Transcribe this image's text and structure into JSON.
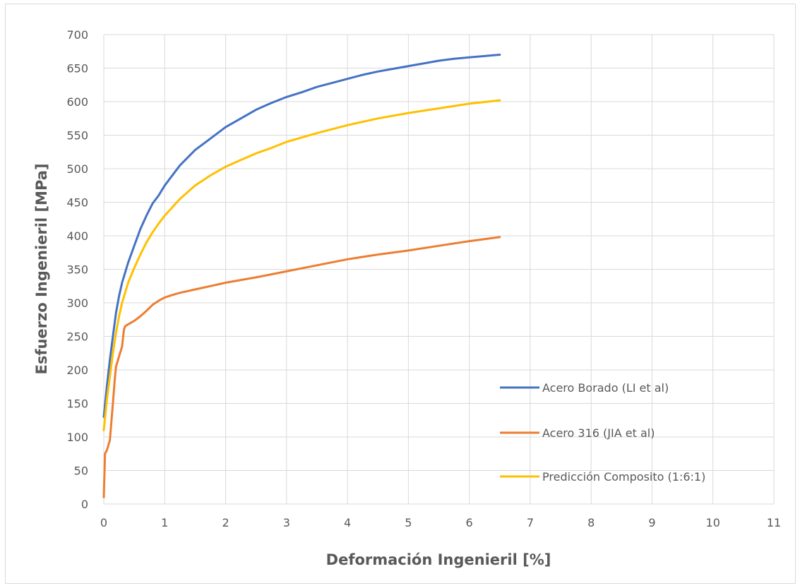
{
  "chart_data": {
    "type": "line",
    "xlabel": "Deformación Ingenieril [%]",
    "ylabel": "Esfuerzo Ingenieril [MPa]",
    "xlim": [
      0,
      11
    ],
    "ylim": [
      0,
      700
    ],
    "x_ticks": [
      0,
      1,
      2,
      3,
      4,
      5,
      6,
      7,
      8,
      9,
      10,
      11
    ],
    "y_ticks": [
      0,
      50,
      100,
      150,
      200,
      250,
      300,
      350,
      400,
      450,
      500,
      550,
      600,
      650,
      700
    ],
    "grid": true,
    "legend_position": "right",
    "series": [
      {
        "name": "Acero Borado (LI et al)",
        "color": "#4472C4",
        "x": [
          0,
          0.05,
          0.1,
          0.15,
          0.2,
          0.25,
          0.3,
          0.4,
          0.5,
          0.6,
          0.7,
          0.8,
          0.9,
          1.0,
          1.1,
          1.25,
          1.5,
          1.75,
          2.0,
          2.25,
          2.5,
          2.75,
          3.0,
          3.25,
          3.5,
          3.75,
          4.0,
          4.25,
          4.5,
          4.75,
          5.0,
          5.25,
          5.5,
          5.75,
          6.0,
          6.25,
          6.5
        ],
        "y": [
          130,
          175,
          215,
          250,
          285,
          310,
          330,
          360,
          385,
          410,
          430,
          448,
          460,
          475,
          487,
          505,
          528,
          545,
          562,
          575,
          588,
          598,
          607,
          614,
          622,
          628,
          634,
          640,
          645,
          649,
          653,
          657,
          661,
          664,
          666,
          668,
          670
        ]
      },
      {
        "name": "Acero 316 (JIA et al)",
        "color": "#ED7D31",
        "x": [
          0,
          0.02,
          0.05,
          0.1,
          0.12,
          0.15,
          0.18,
          0.2,
          0.25,
          0.3,
          0.33,
          0.35,
          0.4,
          0.5,
          0.6,
          0.7,
          0.8,
          0.9,
          1.0,
          1.1,
          1.25,
          1.5,
          1.75,
          2.0,
          2.5,
          3.0,
          3.5,
          4.0,
          4.5,
          5.0,
          5.5,
          6.0,
          6.5
        ],
        "y": [
          10,
          75,
          80,
          95,
          118,
          150,
          185,
          205,
          220,
          235,
          260,
          265,
          268,
          273,
          280,
          288,
          297,
          303,
          308,
          311,
          315,
          320,
          325,
          330,
          338,
          347,
          356,
          365,
          372,
          378,
          385,
          392,
          398
        ]
      },
      {
        "name": "Predicción Composito (1:6:1)",
        "color": "#FFC000",
        "x": [
          0,
          0.05,
          0.1,
          0.15,
          0.2,
          0.25,
          0.3,
          0.4,
          0.5,
          0.6,
          0.7,
          0.8,
          0.9,
          1.0,
          1.1,
          1.25,
          1.5,
          1.75,
          2.0,
          2.25,
          2.5,
          2.75,
          3.0,
          3.5,
          4.0,
          4.5,
          5.0,
          5.5,
          6.0,
          6.5
        ],
        "y": [
          110,
          155,
          190,
          225,
          255,
          280,
          300,
          330,
          352,
          372,
          390,
          405,
          418,
          430,
          440,
          455,
          475,
          490,
          503,
          513,
          523,
          531,
          540,
          553,
          565,
          575,
          583,
          590,
          597,
          602
        ]
      }
    ]
  }
}
